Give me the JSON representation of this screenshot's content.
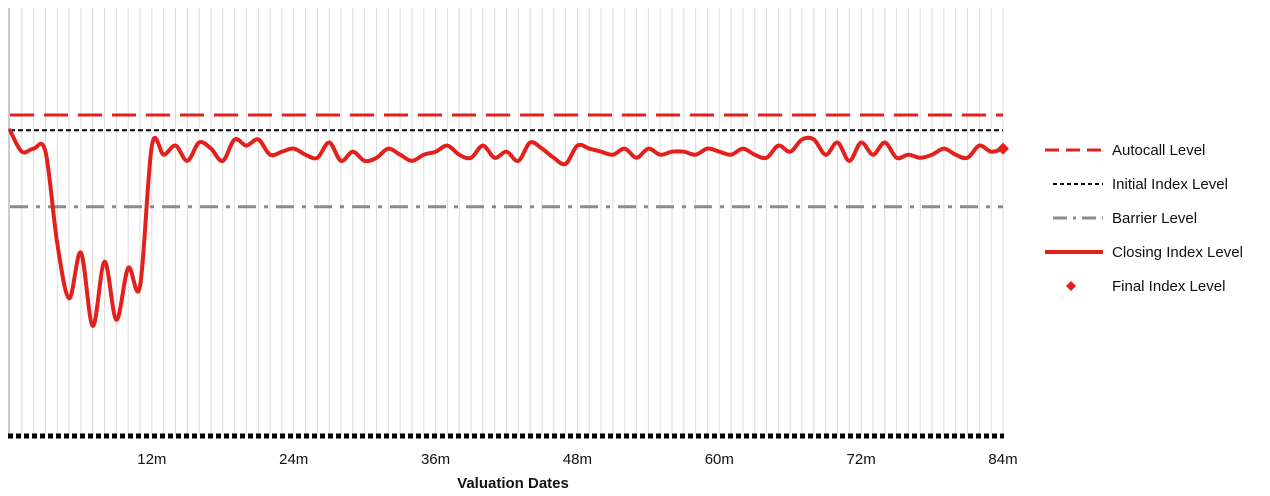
{
  "chart_data": {
    "type": "line",
    "title": "",
    "xlabel": "Valuation Dates",
    "ylabel": "",
    "x_months": [
      0,
      1,
      2,
      3,
      4,
      5,
      6,
      7,
      8,
      9,
      10,
      11,
      12,
      13,
      14,
      15,
      16,
      17,
      18,
      19,
      20,
      21,
      22,
      23,
      24,
      25,
      26,
      27,
      28,
      29,
      30,
      31,
      32,
      33,
      34,
      35,
      36,
      37,
      38,
      39,
      40,
      41,
      42,
      43,
      44,
      45,
      46,
      47,
      48,
      49,
      50,
      51,
      52,
      53,
      54,
      55,
      56,
      57,
      58,
      59,
      60,
      61,
      62,
      63,
      64,
      65,
      66,
      67,
      68,
      69,
      70,
      71,
      72,
      73,
      74,
      75,
      76,
      77,
      78,
      79,
      80,
      81,
      82,
      83,
      84
    ],
    "xticks": [
      "12m",
      "24m",
      "36m",
      "48m",
      "60m",
      "72m",
      "84m"
    ],
    "xtick_values": [
      12,
      24,
      36,
      48,
      60,
      72,
      84
    ],
    "xlim": [
      0,
      84
    ],
    "ylim": [
      0,
      1.4
    ],
    "grid": "vertical",
    "legend_position": "right",
    "series": [
      {
        "name": "Autocall Level",
        "kind": "hline",
        "value": 1.05,
        "color": "#e4201c",
        "style": "long-dash"
      },
      {
        "name": "Initial Index Level",
        "kind": "hline",
        "value": 1.0,
        "color": "#000000",
        "style": "short-dash"
      },
      {
        "name": "Barrier Level",
        "kind": "hline",
        "value": 0.75,
        "color": "#8c8c8c",
        "style": "dash-dot"
      },
      {
        "name": "Closing Index Level",
        "kind": "line",
        "color": "#e4201c",
        "values": [
          1.0,
          0.93,
          0.94,
          0.93,
          0.63,
          0.45,
          0.6,
          0.36,
          0.57,
          0.38,
          0.55,
          0.49,
          0.95,
          0.92,
          0.95,
          0.9,
          0.96,
          0.94,
          0.9,
          0.97,
          0.95,
          0.97,
          0.92,
          0.93,
          0.94,
          0.92,
          0.91,
          0.96,
          0.9,
          0.93,
          0.9,
          0.91,
          0.94,
          0.92,
          0.9,
          0.92,
          0.93,
          0.95,
          0.92,
          0.91,
          0.95,
          0.91,
          0.93,
          0.9,
          0.96,
          0.94,
          0.91,
          0.89,
          0.95,
          0.94,
          0.93,
          0.92,
          0.94,
          0.91,
          0.94,
          0.92,
          0.93,
          0.93,
          0.92,
          0.94,
          0.93,
          0.92,
          0.94,
          0.92,
          0.91,
          0.95,
          0.93,
          0.97,
          0.97,
          0.92,
          0.96,
          0.9,
          0.96,
          0.92,
          0.96,
          0.91,
          0.92,
          0.91,
          0.92,
          0.94,
          0.92,
          0.91,
          0.95,
          0.93,
          0.94
        ]
      },
      {
        "name": "Final Index Level",
        "kind": "marker",
        "x": 84,
        "value": 0.94,
        "color": "#e4201c"
      }
    ]
  }
}
